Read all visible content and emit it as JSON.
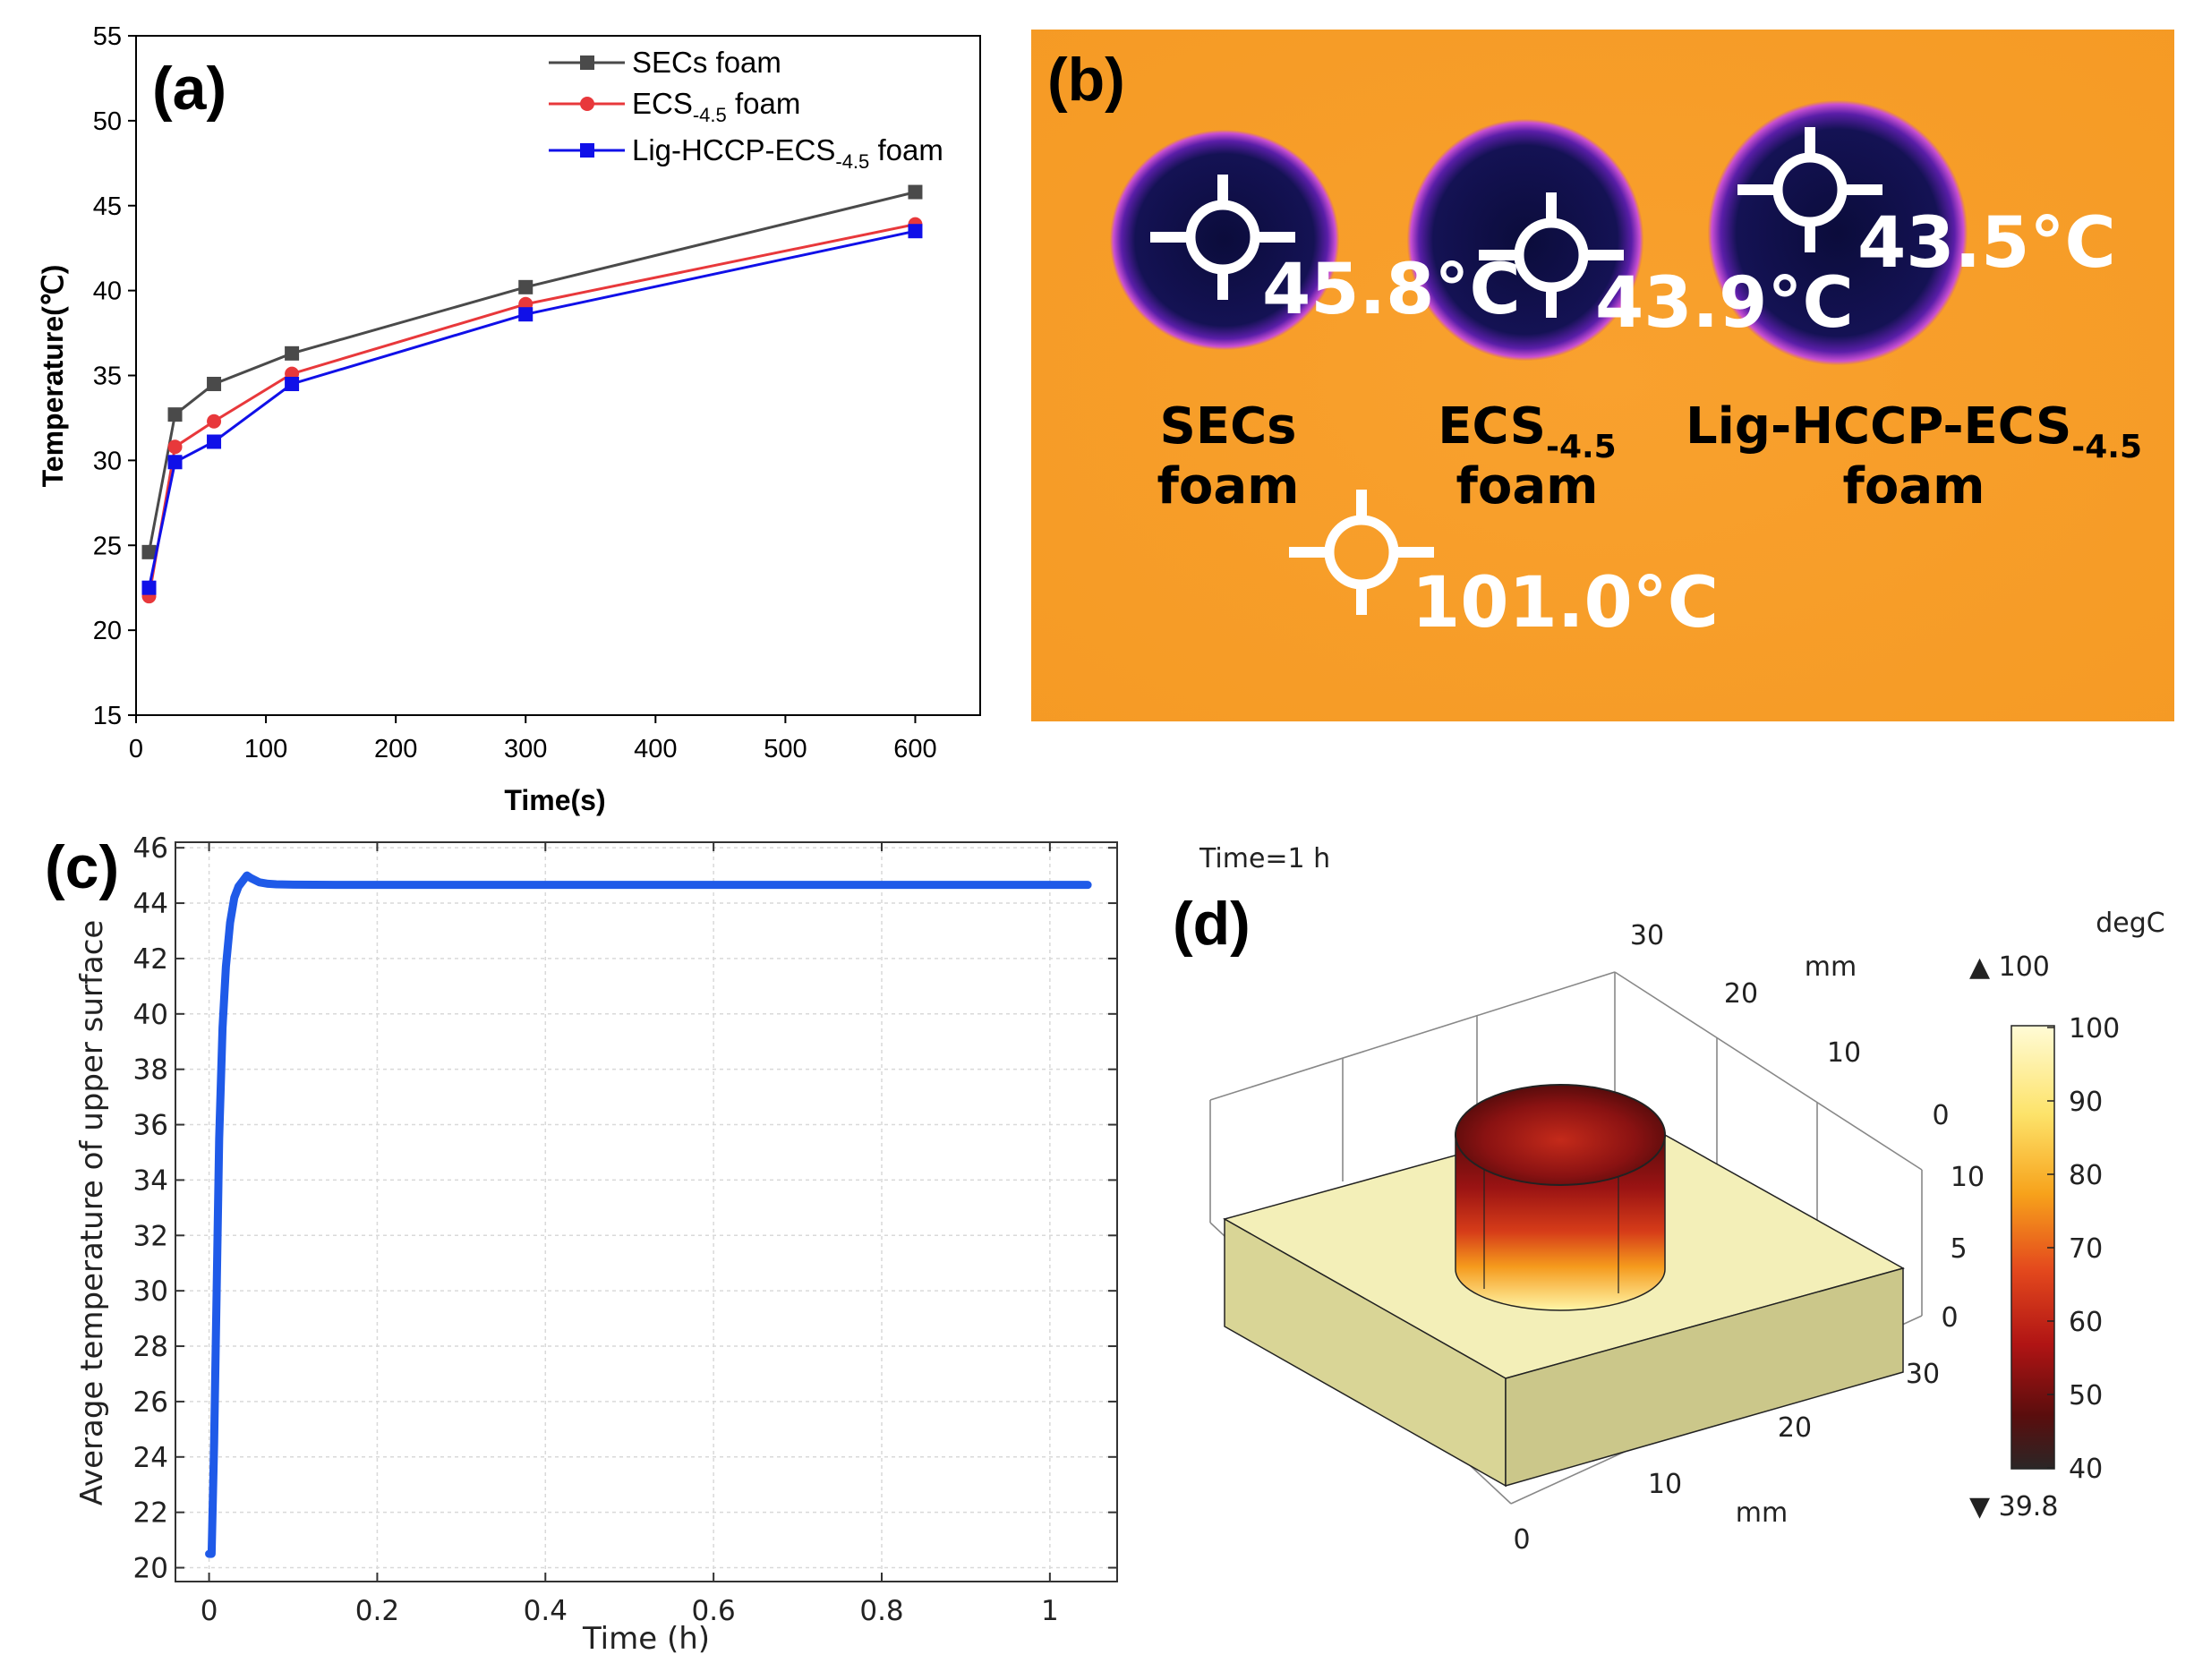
{
  "panels": {
    "a": "(a)",
    "b": "(b)",
    "c": "(c)",
    "d": "(d)"
  },
  "chart_data": [
    {
      "type": "line",
      "panel": "a",
      "xlabel": "Time(s)",
      "ylabel": "Temperature(℃)",
      "xlim": [
        0,
        650
      ],
      "ylim": [
        15,
        55
      ],
      "xticks": [
        0,
        100,
        200,
        300,
        400,
        500,
        600
      ],
      "yticks": [
        15,
        20,
        25,
        30,
        35,
        40,
        45,
        50,
        55
      ],
      "x": [
        10,
        30,
        60,
        120,
        300,
        600
      ],
      "series": [
        {
          "name": "SECs foam",
          "base": "SECs foam",
          "sub": "",
          "tail": "",
          "color": "#4a4a4a",
          "marker": "square",
          "values": [
            24.6,
            32.7,
            34.5,
            36.3,
            40.2,
            45.8
          ]
        },
        {
          "name": "ECS-4.5 foam",
          "base": "ECS",
          "sub": "-4.5",
          "tail": " foam",
          "color": "#e8383b",
          "marker": "circle",
          "values": [
            22.0,
            30.8,
            32.3,
            35.1,
            39.2,
            43.9
          ]
        },
        {
          "name": "Lig-HCCP-ECS-4.5 foam",
          "base": "Lig-HCCP-ECS",
          "sub": "-4.5",
          "tail": " foam",
          "color": "#1010e8",
          "marker": "square",
          "values": [
            22.5,
            29.9,
            31.1,
            34.5,
            38.6,
            43.5
          ]
        }
      ]
    },
    {
      "type": "line",
      "panel": "c",
      "xlabel": "Time (h)",
      "ylabel": "Average temperature of upper surface",
      "xlim": [
        -0.04,
        1.08
      ],
      "ylim": [
        19.5,
        46.2
      ],
      "xticks": [
        0,
        0.2,
        0.4,
        0.6,
        0.8,
        1
      ],
      "xtick_labels": [
        "0",
        "0.2",
        "0.4",
        "0.6",
        "0.8",
        "1"
      ],
      "yticks": [
        20,
        22,
        24,
        26,
        28,
        30,
        32,
        34,
        36,
        38,
        40,
        42,
        44,
        46
      ],
      "series": [
        {
          "name": "Average temperature of upper surface",
          "color": "#1f5ae8",
          "x": [
            0,
            0.003,
            0.006,
            0.009,
            0.012,
            0.016,
            0.02,
            0.025,
            0.03,
            0.035,
            0.04,
            0.045,
            0.05,
            0.06,
            0.07,
            0.08,
            0.1,
            0.15,
            0.2,
            0.4,
            0.6,
            0.8,
            1.0,
            1.045
          ],
          "values": [
            20.5,
            20.5,
            24.5,
            30.0,
            35.5,
            39.5,
            41.7,
            43.3,
            44.2,
            44.6,
            44.8,
            45.0,
            44.9,
            44.75,
            44.7,
            44.68,
            44.67,
            44.66,
            44.66,
            44.66,
            44.66,
            44.66,
            44.66,
            44.66
          ]
        }
      ]
    }
  ],
  "thermal_image": {
    "spots": [
      {
        "temp": "45.8°C"
      },
      {
        "temp": "43.9°C"
      },
      {
        "temp": "43.5°C"
      },
      {
        "temp": "101.0°C"
      }
    ],
    "labels": [
      {
        "line1": "SECs",
        "line1_sub": "",
        "line2": "foam"
      },
      {
        "line1": "ECS",
        "line1_sub": "-4.5",
        "line2": "foam"
      },
      {
        "line1": "Lig-HCCP-ECS",
        "line1_sub": "-4.5",
        "line2": "foam"
      }
    ]
  },
  "simulation": {
    "time_label": "Time=1 h",
    "unit": "degC",
    "max_label": "▲ 100",
    "min_label": "▼ 39.8",
    "colorbar_ticks": [
      "100",
      "90",
      "80",
      "70",
      "60",
      "50",
      "40"
    ],
    "axis_unit": "mm",
    "axis_ticks_top": [
      "30",
      "20",
      "10",
      "0"
    ],
    "axis_ticks_vertical": [
      "10",
      "5",
      "0"
    ],
    "axis_ticks_bottom": [
      "30",
      "20",
      "10",
      "0"
    ]
  }
}
